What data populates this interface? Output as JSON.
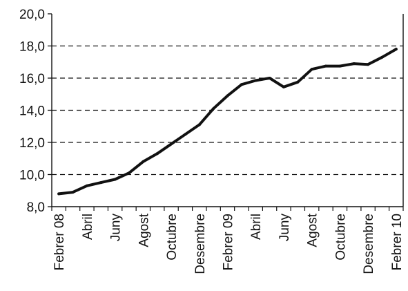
{
  "chart_data": {
    "type": "line",
    "title": "",
    "xlabel": "",
    "ylabel": "",
    "ylim": [
      8,
      20
    ],
    "yticks": [
      "8,0",
      "10,0",
      "12,0",
      "14,0",
      "16,0",
      "18,0",
      "20,0"
    ],
    "ytick_values": [
      8,
      10,
      12,
      14,
      16,
      18,
      20
    ],
    "grid": "horizontal dashed",
    "categories": [
      "Febrer 08",
      "Abril",
      "Juny",
      "Agost",
      "Octubre",
      "Desembre",
      "Febrer 09",
      "Abril",
      "Juny",
      "Agost",
      "Octubre",
      "Desembre",
      "Febrer 10"
    ],
    "series": [
      {
        "color": "#111111",
        "x": [
          "Febrer 08",
          "Març 08",
          "Abril 08",
          "Maig 08",
          "Juny 08",
          "Juliol 08",
          "Agost 08",
          "Setembre 08",
          "Octubre 08",
          "Novembre 08",
          "Desembre 08",
          "Gener 09",
          "Febrer 09",
          "Març 09",
          "Abril 09",
          "Maig 09",
          "Juny 09",
          "Juliol 09",
          "Agost 09",
          "Setembre 09",
          "Octubre 09",
          "Novembre 09",
          "Desembre 09",
          "Gener 10",
          "Febrer 10"
        ],
        "values": [
          8.8,
          8.9,
          9.3,
          9.5,
          9.7,
          10.1,
          10.8,
          11.3,
          11.9,
          12.5,
          13.1,
          14.1,
          14.9,
          15.6,
          15.85,
          16.0,
          15.45,
          15.75,
          16.55,
          16.75,
          16.75,
          16.9,
          16.85,
          17.3,
          17.8
        ]
      }
    ]
  }
}
